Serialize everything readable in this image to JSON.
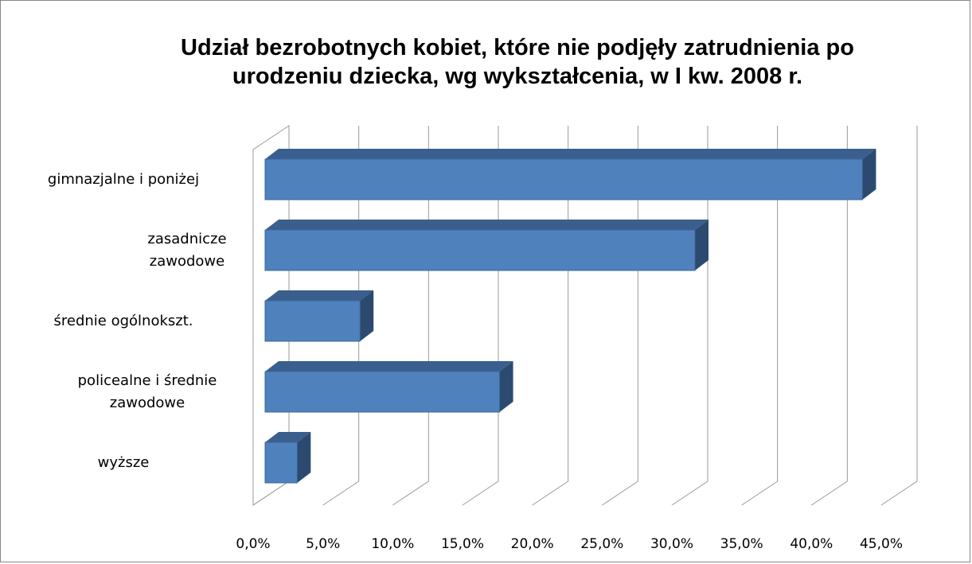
{
  "chart_data": {
    "type": "bar3d_horizontal",
    "title": "Udział bezrobotnych kobiet, które nie podjęły zatrudnienia po urodzeniu dziecka, wg wykształcenia, w I kw. 2008 r.",
    "categories": [
      "gimnazjalne i poniżej",
      "zasadnicze zawodowe",
      "średnie ogólnokszt.",
      "policealne i średnie zawodowe",
      "wyższe"
    ],
    "values": [
      42.8,
      30.8,
      6.8,
      16.8,
      2.3
    ],
    "color": "#4f81bd",
    "xlim": [
      0,
      45
    ],
    "xticks": [
      {
        "value": 0,
        "label": "0,0%"
      },
      {
        "value": 5,
        "label": "5,0%"
      },
      {
        "value": 10,
        "label": "10,0%"
      },
      {
        "value": 15,
        "label": "15,0%"
      },
      {
        "value": 20,
        "label": "20,0%"
      },
      {
        "value": 25,
        "label": "25,0%"
      },
      {
        "value": 30,
        "label": "30,0%"
      },
      {
        "value": 35,
        "label": "35,0%"
      },
      {
        "value": 40,
        "label": "40,0%"
      },
      {
        "value": 45,
        "label": "45,0%"
      }
    ],
    "grid": true
  }
}
